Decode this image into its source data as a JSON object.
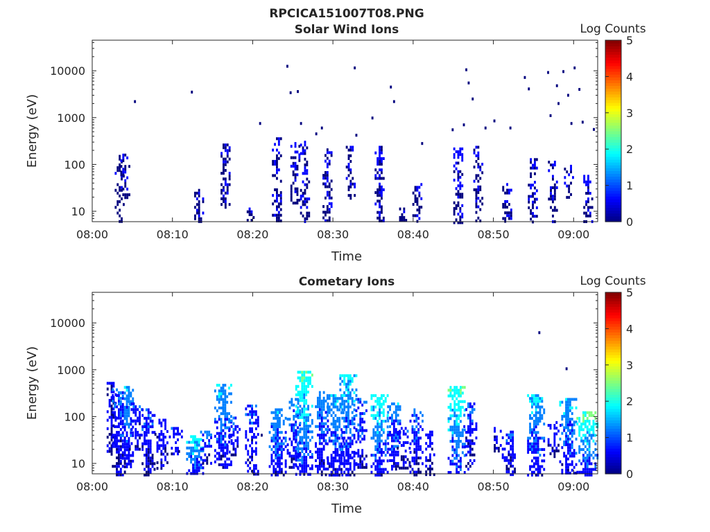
{
  "figure": {
    "title": "RPCICA151007T08.PNG"
  },
  "colormap": [
    "#00007f",
    "#0000ff",
    "#007fff",
    "#00ffff",
    "#7fff7f",
    "#ffff00",
    "#ff7f00",
    "#ff0000",
    "#7f0000"
  ],
  "chart_data": [
    {
      "type": "heatmap",
      "title": "Solar Wind Ions",
      "xlabel": "Time",
      "ylabel": "Energy (eV)",
      "x_unit": "minutes after 08:00",
      "xlim": [
        0,
        63
      ],
      "ylim": [
        6,
        45000
      ],
      "yscale": "log",
      "xticks": [
        {
          "value": 0,
          "label": "08:00"
        },
        {
          "value": 10,
          "label": "08:10"
        },
        {
          "value": 20,
          "label": "08:20"
        },
        {
          "value": 30,
          "label": "08:30"
        },
        {
          "value": 40,
          "label": "08:40"
        },
        {
          "value": 50,
          "label": "08:50"
        },
        {
          "value": 60,
          "label": "09:00"
        }
      ],
      "yticks": [
        {
          "value": 10,
          "label": "10"
        },
        {
          "value": 100,
          "label": "100"
        },
        {
          "value": 1000,
          "label": "1000"
        },
        {
          "value": 10000,
          "label": "10000"
        }
      ],
      "colorbar": {
        "label": "Log Counts",
        "min": 0,
        "max": 5,
        "ticks": [
          "0",
          "1",
          "2",
          "3",
          "4",
          "5"
        ]
      },
      "bursts": [
        {
          "t": 3.3,
          "lo": 6,
          "hi": 160,
          "level": 0.1,
          "density": 0.45
        },
        {
          "t": 4.0,
          "lo": 20,
          "hi": 170,
          "level": 0.2,
          "density": 0.5
        },
        {
          "t": 13.2,
          "lo": 6,
          "hi": 30,
          "level": 0.2,
          "density": 0.8
        },
        {
          "t": 16.5,
          "lo": 12,
          "hi": 280,
          "level": 0.25,
          "density": 0.6
        },
        {
          "t": 19.5,
          "lo": 6,
          "hi": 12,
          "level": 0.1,
          "density": 0.6
        },
        {
          "t": 22.9,
          "lo": 6,
          "hi": 380,
          "level": 0.2,
          "density": 0.6
        },
        {
          "t": 25.2,
          "lo": 15,
          "hi": 300,
          "level": 0.25,
          "density": 0.55
        },
        {
          "t": 26.4,
          "lo": 6,
          "hi": 320,
          "level": 0.35,
          "density": 0.6
        },
        {
          "t": 29.2,
          "lo": 6,
          "hi": 220,
          "level": 0.25,
          "density": 0.55
        },
        {
          "t": 32.1,
          "lo": 20,
          "hi": 250,
          "level": 0.2,
          "density": 0.55
        },
        {
          "t": 35.7,
          "lo": 6,
          "hi": 250,
          "level": 0.35,
          "density": 0.65
        },
        {
          "t": 38.5,
          "lo": 6,
          "hi": 12,
          "level": 0.15,
          "density": 0.5
        },
        {
          "t": 40.4,
          "lo": 6,
          "hi": 40,
          "level": 0.2,
          "density": 0.6
        },
        {
          "t": 45.5,
          "lo": 6,
          "hi": 230,
          "level": 0.35,
          "density": 0.65
        },
        {
          "t": 48.0,
          "lo": 6,
          "hi": 250,
          "level": 0.2,
          "density": 0.5
        },
        {
          "t": 51.6,
          "lo": 6,
          "hi": 40,
          "level": 0.2,
          "density": 0.6
        },
        {
          "t": 54.8,
          "lo": 6,
          "hi": 180,
          "level": 0.3,
          "density": 0.6
        },
        {
          "t": 57.3,
          "lo": 6,
          "hi": 120,
          "level": 0.2,
          "density": 0.55
        },
        {
          "t": 59.3,
          "lo": 20,
          "hi": 130,
          "level": 0.25,
          "density": 0.5
        },
        {
          "t": 61.7,
          "lo": 6,
          "hi": 60,
          "level": 0.35,
          "density": 0.75
        }
      ],
      "isolated_points": [
        {
          "t": 5.2,
          "e": 2200
        },
        {
          "t": 12.3,
          "e": 3500
        },
        {
          "t": 20.8,
          "e": 750
        },
        {
          "t": 24.2,
          "e": 12500
        },
        {
          "t": 24.6,
          "e": 3400
        },
        {
          "t": 25.5,
          "e": 3600
        },
        {
          "t": 25.9,
          "e": 750
        },
        {
          "t": 27.8,
          "e": 450
        },
        {
          "t": 28.5,
          "e": 600
        },
        {
          "t": 32.6,
          "e": 11500
        },
        {
          "t": 32.8,
          "e": 420
        },
        {
          "t": 34.8,
          "e": 980
        },
        {
          "t": 37.1,
          "e": 4500
        },
        {
          "t": 37.5,
          "e": 2200
        },
        {
          "t": 41.0,
          "e": 280
        },
        {
          "t": 44.8,
          "e": 550
        },
        {
          "t": 46.5,
          "e": 10500
        },
        {
          "t": 46.8,
          "e": 5500
        },
        {
          "t": 47.3,
          "e": 2500
        },
        {
          "t": 48.9,
          "e": 600
        },
        {
          "t": 50.0,
          "e": 850
        },
        {
          "t": 52.0,
          "e": 600
        },
        {
          "t": 53.8,
          "e": 7200
        },
        {
          "t": 54.3,
          "e": 4100
        },
        {
          "t": 56.7,
          "e": 9200
        },
        {
          "t": 57.0,
          "e": 1100
        },
        {
          "t": 57.8,
          "e": 4800
        },
        {
          "t": 58.6,
          "e": 9600
        },
        {
          "t": 59.2,
          "e": 3000
        },
        {
          "t": 59.6,
          "e": 750
        },
        {
          "t": 60.0,
          "e": 11500
        },
        {
          "t": 60.6,
          "e": 4000
        },
        {
          "t": 61.0,
          "e": 800
        },
        {
          "t": 62.4,
          "e": 560
        },
        {
          "t": 58.0,
          "e": 2000
        },
        {
          "t": 46.2,
          "e": 700
        }
      ]
    },
    {
      "type": "heatmap",
      "title": "Cometary Ions",
      "xlabel": "Time",
      "ylabel": "Energy (eV)",
      "x_unit": "minutes after 08:00",
      "xlim": [
        0,
        63
      ],
      "ylim": [
        6,
        45000
      ],
      "yscale": "log",
      "xticks": [
        {
          "value": 0,
          "label": "08:00"
        },
        {
          "value": 10,
          "label": "08:10"
        },
        {
          "value": 20,
          "label": "08:20"
        },
        {
          "value": 30,
          "label": "08:30"
        },
        {
          "value": 40,
          "label": "08:40"
        },
        {
          "value": 50,
          "label": "08:50"
        },
        {
          "value": 60,
          "label": "09:00"
        }
      ],
      "yticks": [
        {
          "value": 10,
          "label": "10"
        },
        {
          "value": 100,
          "label": "100"
        },
        {
          "value": 1000,
          "label": "1000"
        },
        {
          "value": 10000,
          "label": "10000"
        }
      ],
      "colorbar": {
        "label": "Log Counts",
        "min": 0,
        "max": 5,
        "ticks": [
          "0",
          "1",
          "2",
          "3",
          "4",
          "5"
        ]
      },
      "bursts": [
        {
          "t": 2.3,
          "lo": 15,
          "hi": 550,
          "level": 0.3,
          "density": 0.7
        },
        {
          "t": 3.2,
          "lo": 6,
          "hi": 400,
          "level": 0.6,
          "density": 0.8
        },
        {
          "t": 4.2,
          "lo": 8,
          "hi": 450,
          "level": 0.9,
          "density": 0.85
        },
        {
          "t": 5.3,
          "lo": 20,
          "hi": 200,
          "level": 0.5,
          "density": 0.6
        },
        {
          "t": 6.9,
          "lo": 6,
          "hi": 150,
          "level": 0.6,
          "density": 0.75
        },
        {
          "t": 8.5,
          "lo": 8,
          "hi": 90,
          "level": 0.5,
          "density": 0.6
        },
        {
          "t": 10.3,
          "lo": 15,
          "hi": 60,
          "level": 0.5,
          "density": 0.5
        },
        {
          "t": 12.7,
          "lo": 6,
          "hi": 40,
          "level": 1.3,
          "density": 0.9
        },
        {
          "t": 14.2,
          "lo": 10,
          "hi": 50,
          "level": 0.7,
          "density": 0.7
        },
        {
          "t": 16.2,
          "lo": 8,
          "hi": 500,
          "level": 1.0,
          "density": 0.85
        },
        {
          "t": 17.5,
          "lo": 15,
          "hi": 100,
          "level": 0.6,
          "density": 0.6
        },
        {
          "t": 19.8,
          "lo": 6,
          "hi": 180,
          "level": 0.6,
          "density": 0.7
        },
        {
          "t": 23.0,
          "lo": 6,
          "hi": 150,
          "level": 1.0,
          "density": 0.8
        },
        {
          "t": 25.0,
          "lo": 8,
          "hi": 250,
          "level": 0.8,
          "density": 0.7
        },
        {
          "t": 26.3,
          "lo": 6,
          "hi": 950,
          "level": 1.4,
          "density": 0.9
        },
        {
          "t": 28.5,
          "lo": 6,
          "hi": 350,
          "level": 0.9,
          "density": 0.8
        },
        {
          "t": 30.2,
          "lo": 6,
          "hi": 300,
          "level": 1.0,
          "density": 0.8
        },
        {
          "t": 31.8,
          "lo": 6,
          "hi": 800,
          "level": 1.1,
          "density": 0.85
        },
        {
          "t": 33.3,
          "lo": 8,
          "hi": 250,
          "level": 0.8,
          "density": 0.7
        },
        {
          "t": 35.7,
          "lo": 6,
          "hi": 300,
          "level": 1.3,
          "density": 0.85
        },
        {
          "t": 37.5,
          "lo": 8,
          "hi": 200,
          "level": 0.9,
          "density": 0.75
        },
        {
          "t": 38.7,
          "lo": 8,
          "hi": 60,
          "level": 0.5,
          "density": 0.5
        },
        {
          "t": 40.3,
          "lo": 6,
          "hi": 150,
          "level": 0.7,
          "density": 0.75
        },
        {
          "t": 42.0,
          "lo": 6,
          "hi": 50,
          "level": 0.4,
          "density": 0.65
        },
        {
          "t": 45.3,
          "lo": 6,
          "hi": 450,
          "level": 1.4,
          "density": 0.85
        },
        {
          "t": 47.0,
          "lo": 8,
          "hi": 200,
          "level": 0.6,
          "density": 0.6
        },
        {
          "t": 50.3,
          "lo": 15,
          "hi": 60,
          "level": 0.4,
          "density": 0.5
        },
        {
          "t": 51.8,
          "lo": 6,
          "hi": 50,
          "level": 0.6,
          "density": 0.75
        },
        {
          "t": 55.2,
          "lo": 6,
          "hi": 300,
          "level": 1.1,
          "density": 0.85
        },
        {
          "t": 57.5,
          "lo": 15,
          "hi": 80,
          "level": 0.5,
          "density": 0.55
        },
        {
          "t": 59.2,
          "lo": 6,
          "hi": 250,
          "level": 1.0,
          "density": 0.8
        },
        {
          "t": 61.6,
          "lo": 6,
          "hi": 130,
          "level": 1.5,
          "density": 0.85
        }
      ],
      "isolated_points": [
        {
          "t": 55.6,
          "e": 6200
        },
        {
          "t": 59.0,
          "e": 1050
        },
        {
          "t": 10.7,
          "e": 18
        },
        {
          "t": 21.0,
          "e": 40
        }
      ]
    }
  ]
}
